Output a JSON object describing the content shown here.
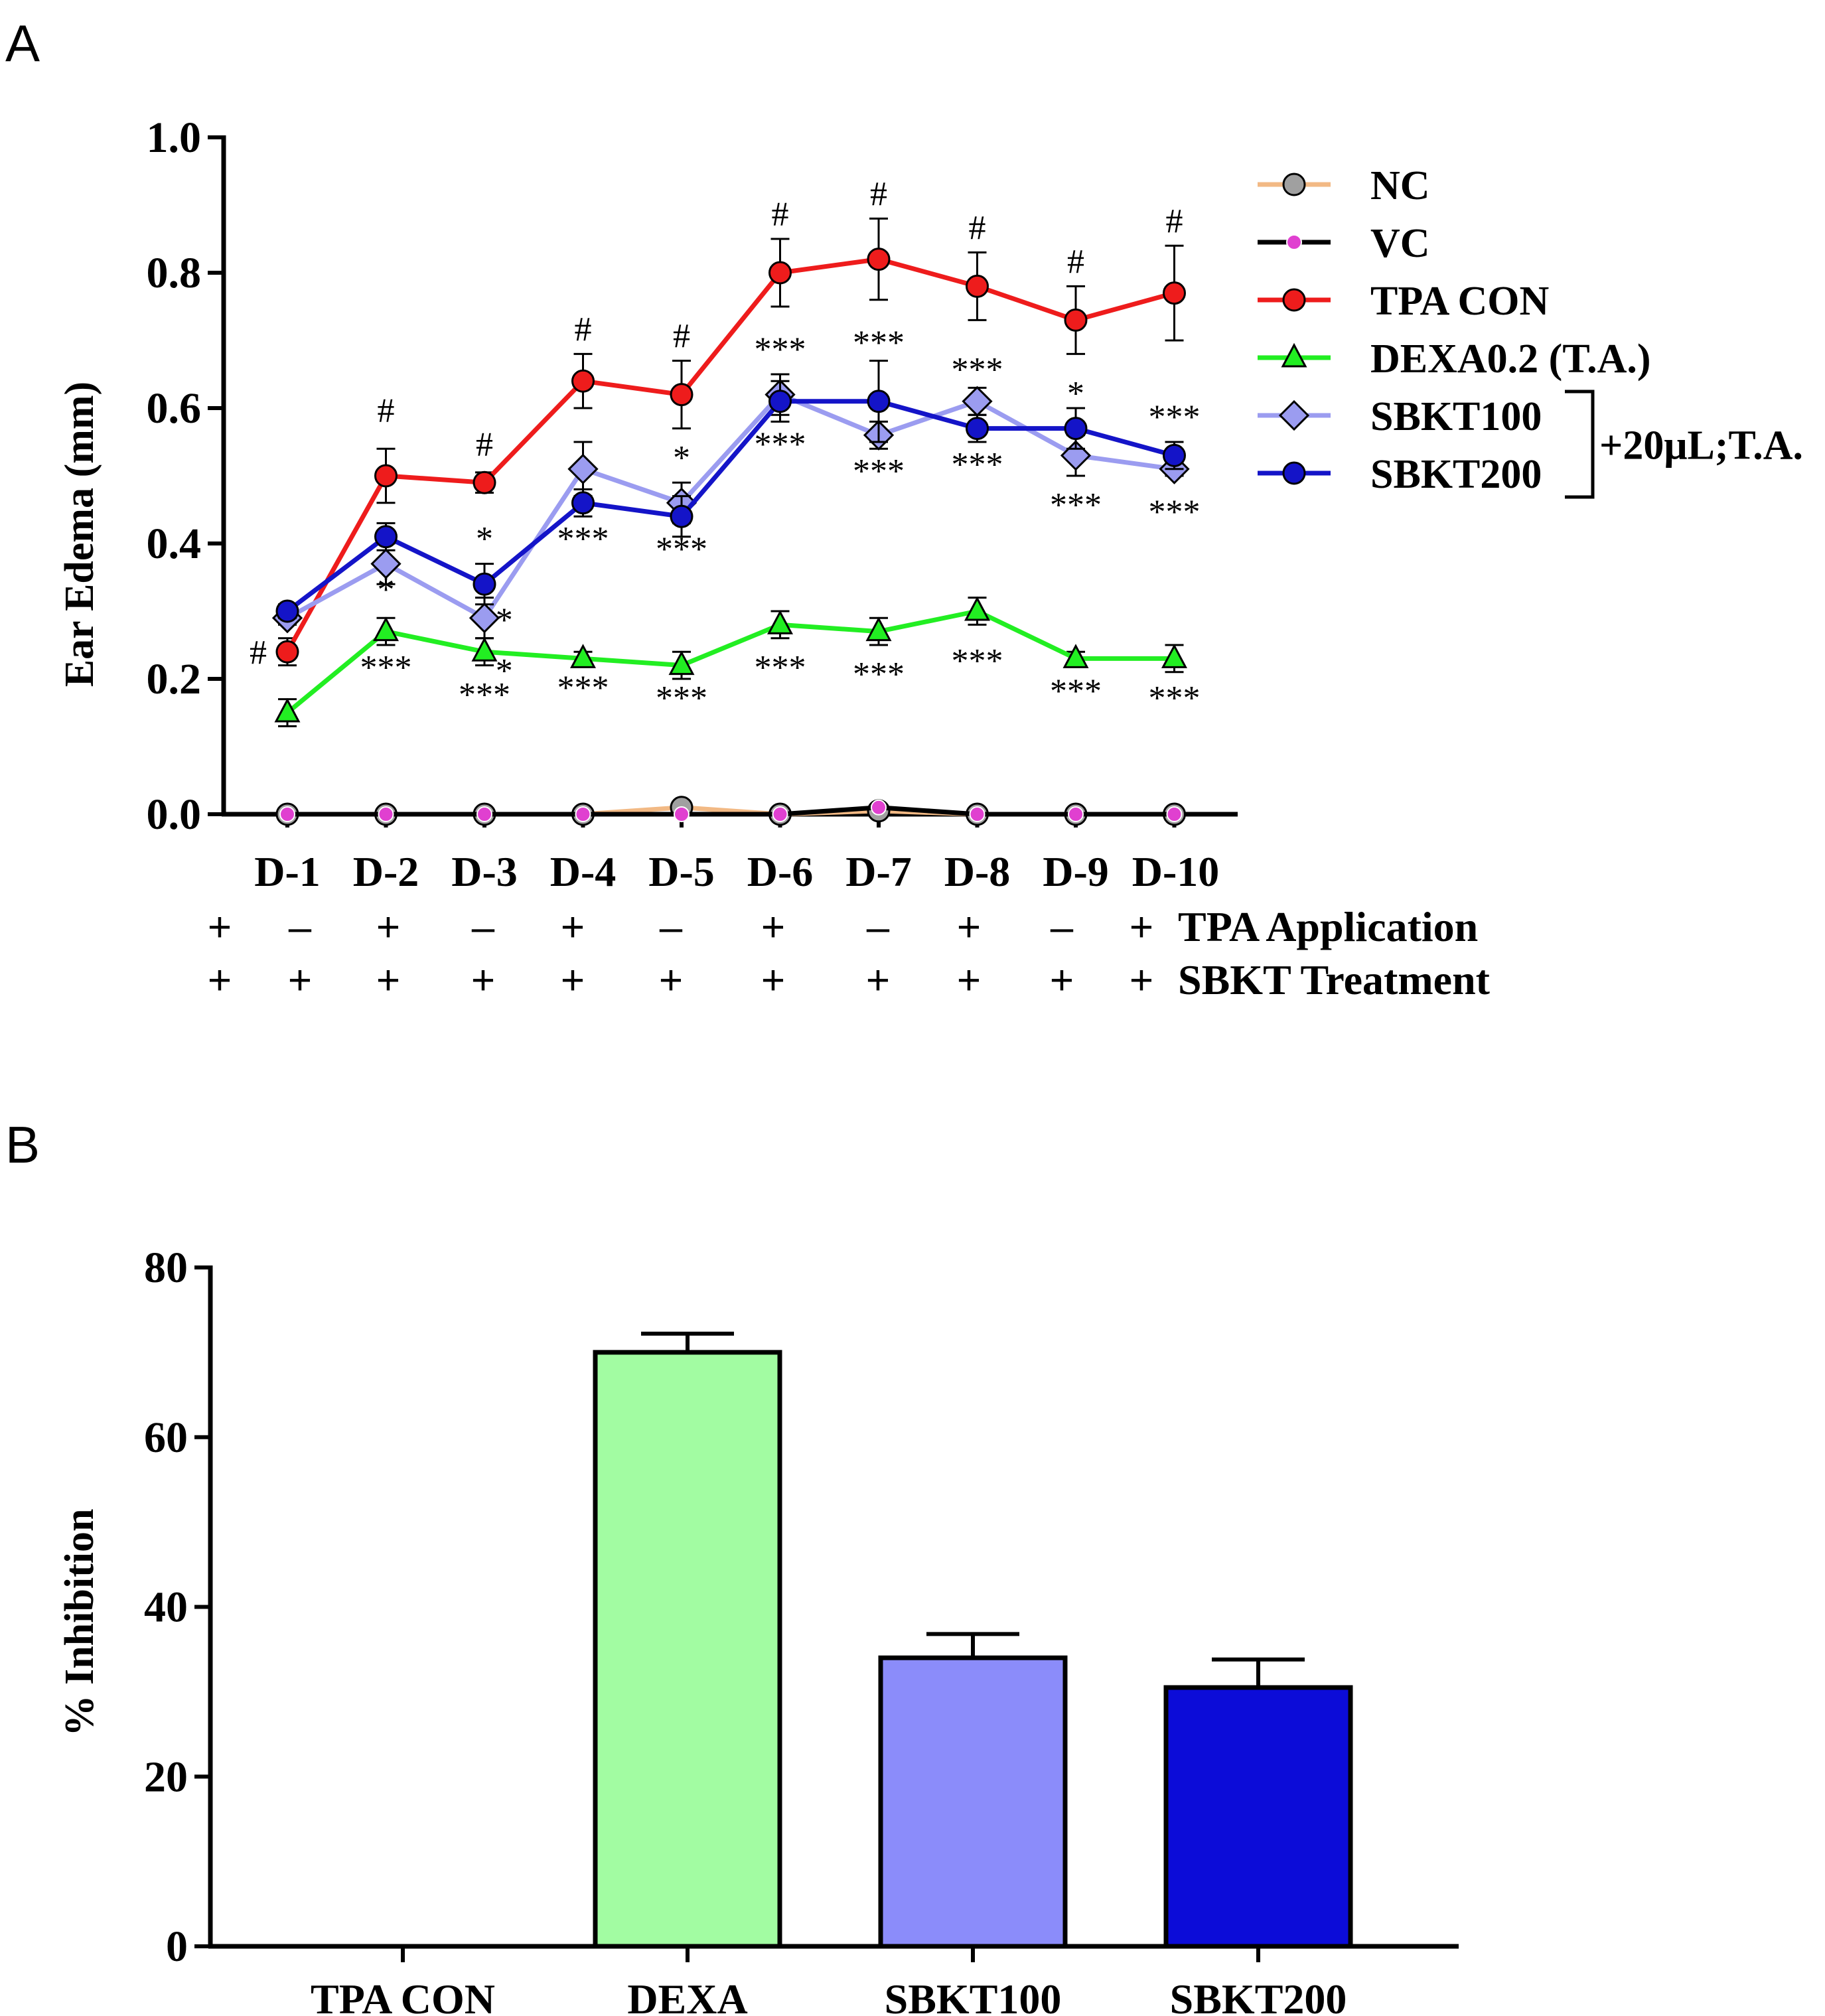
{
  "panels": {
    "a": "A",
    "b": "B"
  },
  "chart_data": [
    {
      "type": "line",
      "ylabel": "Ear Edema (mm)",
      "ylim": [
        0,
        1.0
      ],
      "yticks": [
        "0.0",
        "0.2",
        "0.4",
        "0.6",
        "0.8",
        "1.0"
      ],
      "categories": [
        "D-1",
        "D-2",
        "D-3",
        "D-4",
        "D-5",
        "D-6",
        "D-7",
        "D-8",
        "D-9",
        "D-10"
      ],
      "series": [
        {
          "name": "NC",
          "color": "#f2b984",
          "marker": "circle",
          "markerColor": "#a0a0a0",
          "values": [
            0,
            0,
            0,
            0,
            0.01,
            0,
            0.005,
            0,
            0,
            0
          ],
          "errors": [
            0,
            0,
            0,
            0,
            0,
            0,
            0,
            0,
            0,
            0
          ]
        },
        {
          "name": "VC",
          "color": "#000000",
          "marker": "circle-small",
          "markerColor": "#e040d0",
          "values": [
            0,
            0,
            0,
            0,
            0,
            0,
            0.01,
            0,
            0,
            0
          ],
          "errors": [
            0,
            0,
            0,
            0,
            0,
            0,
            0,
            0,
            0,
            0
          ]
        },
        {
          "name": "TPA CON",
          "color": "#ee1c1c",
          "marker": "circle",
          "markerColor": "#ee1c1c",
          "values": [
            0.24,
            0.5,
            0.49,
            0.64,
            0.62,
            0.8,
            0.82,
            0.78,
            0.73,
            0.77
          ],
          "errors": [
            0.02,
            0.04,
            0.015,
            0.04,
            0.05,
            0.05,
            0.06,
            0.05,
            0.05,
            0.07
          ]
        },
        {
          "name": "DEXA0.2 (T.A.)",
          "color": "#22ee22",
          "marker": "triangle",
          "markerColor": "#22ee22",
          "values": [
            0.15,
            0.27,
            0.24,
            0.23,
            0.22,
            0.28,
            0.27,
            0.3,
            0.23,
            0.23
          ],
          "errors": [
            0.02,
            0.02,
            0.02,
            0.01,
            0.02,
            0.02,
            0.02,
            0.02,
            0.01,
            0.02
          ]
        },
        {
          "name": "SBKT100",
          "color": "#9b9cf0",
          "marker": "diamond",
          "markerColor": "#9b9cf0",
          "values": [
            0.29,
            0.37,
            0.29,
            0.51,
            0.46,
            0.62,
            0.56,
            0.61,
            0.53,
            0.51
          ],
          "errors": [
            0.01,
            0.03,
            0.03,
            0.04,
            0.03,
            0.03,
            0.02,
            0.02,
            0.03,
            0.01
          ]
        },
        {
          "name": "SBKT200",
          "color": "#1414c8",
          "marker": "circle",
          "markerColor": "#1414c8",
          "values": [
            0.3,
            0.41,
            0.34,
            0.46,
            0.44,
            0.61,
            0.61,
            0.57,
            0.57,
            0.53
          ],
          "errors": [
            0.01,
            0.02,
            0.03,
            0.02,
            0.03,
            0.03,
            0.06,
            0.02,
            0.03,
            0.02
          ]
        }
      ],
      "legend_group_label": "+20μL;T.A.",
      "annotations": [
        {
          "text": "#",
          "x": 0,
          "y": 0.24,
          "pos": "left"
        },
        {
          "text": "#",
          "x": 1,
          "y": 0.58,
          "pos": "above"
        },
        {
          "text": "#",
          "x": 2,
          "y": 0.53,
          "pos": "above"
        },
        {
          "text": "#",
          "x": 3,
          "y": 0.7,
          "pos": "above"
        },
        {
          "text": "#",
          "x": 4,
          "y": 0.69,
          "pos": "above"
        },
        {
          "text": "#",
          "x": 5,
          "y": 0.87,
          "pos": "above"
        },
        {
          "text": "#",
          "x": 6,
          "y": 0.9,
          "pos": "above"
        },
        {
          "text": "#",
          "x": 7,
          "y": 0.85,
          "pos": "above"
        },
        {
          "text": "#",
          "x": 8,
          "y": 0.8,
          "pos": "above"
        },
        {
          "text": "#",
          "x": 9,
          "y": 0.86,
          "pos": "above"
        },
        {
          "text": "*",
          "x": 1,
          "y": 0.315,
          "pos": "above"
        },
        {
          "text": "***",
          "x": 1,
          "y": 0.2,
          "pos": "above"
        },
        {
          "text": "*",
          "x": 2,
          "y": 0.39,
          "pos": "above"
        },
        {
          "text": "*",
          "x": 2.2,
          "y": 0.27,
          "pos": "above"
        },
        {
          "text": "*",
          "x": 2.2,
          "y": 0.195,
          "pos": "above"
        },
        {
          "text": "***",
          "x": 2,
          "y": 0.16,
          "pos": "above"
        },
        {
          "text": "***",
          "x": 3,
          "y": 0.39,
          "pos": "above"
        },
        {
          "text": "***",
          "x": 3,
          "y": 0.17,
          "pos": "above"
        },
        {
          "text": "*",
          "x": 4,
          "y": 0.51,
          "pos": "above"
        },
        {
          "text": "***",
          "x": 4,
          "y": 0.375,
          "pos": "above"
        },
        {
          "text": "***",
          "x": 4,
          "y": 0.155,
          "pos": "above"
        },
        {
          "text": "***",
          "x": 5,
          "y": 0.67,
          "pos": "above"
        },
        {
          "text": "***",
          "x": 5,
          "y": 0.53,
          "pos": "above"
        },
        {
          "text": "***",
          "x": 5,
          "y": 0.2,
          "pos": "above"
        },
        {
          "text": "***",
          "x": 6,
          "y": 0.68,
          "pos": "above"
        },
        {
          "text": "***",
          "x": 6,
          "y": 0.49,
          "pos": "above"
        },
        {
          "text": "***",
          "x": 6,
          "y": 0.19,
          "pos": "above"
        },
        {
          "text": "***",
          "x": 7,
          "y": 0.64,
          "pos": "above"
        },
        {
          "text": "***",
          "x": 7,
          "y": 0.5,
          "pos": "above"
        },
        {
          "text": "***",
          "x": 7,
          "y": 0.21,
          "pos": "above"
        },
        {
          "text": "*",
          "x": 8,
          "y": 0.605,
          "pos": "above"
        },
        {
          "text": "***",
          "x": 8,
          "y": 0.44,
          "pos": "above"
        },
        {
          "text": "***",
          "x": 8,
          "y": 0.165,
          "pos": "above"
        },
        {
          "text": "***",
          "x": 9,
          "y": 0.57,
          "pos": "above"
        },
        {
          "text": "***",
          "x": 9,
          "y": 0.43,
          "pos": "above"
        },
        {
          "text": "***",
          "x": 9,
          "y": 0.155,
          "pos": "above"
        }
      ],
      "conditions": [
        {
          "label": "TPA Application",
          "symbols": [
            "+",
            "-",
            "+",
            "-",
            "+",
            "-",
            "+",
            "-",
            "+",
            "-",
            "+"
          ]
        },
        {
          "label": "SBKT Treatment",
          "symbols": [
            "+",
            "+",
            "+",
            "+",
            "+",
            "+",
            "+",
            "+",
            "+",
            "+",
            "+"
          ]
        }
      ]
    },
    {
      "type": "bar",
      "ylabel": "% Inhibition",
      "ylim": [
        0,
        80
      ],
      "yticks": [
        "0",
        "20",
        "40",
        "60",
        "80"
      ],
      "categories": [
        "TPA CON",
        "DEXA",
        "SBKT100",
        "SBKT200"
      ],
      "values": [
        0,
        70,
        34,
        30.5
      ],
      "errors": [
        0,
        2.2,
        2.8,
        3.3
      ],
      "colors": [
        "#ffffff",
        "#a2fca2",
        "#8b8cfa",
        "#0c0cd8"
      ]
    }
  ]
}
